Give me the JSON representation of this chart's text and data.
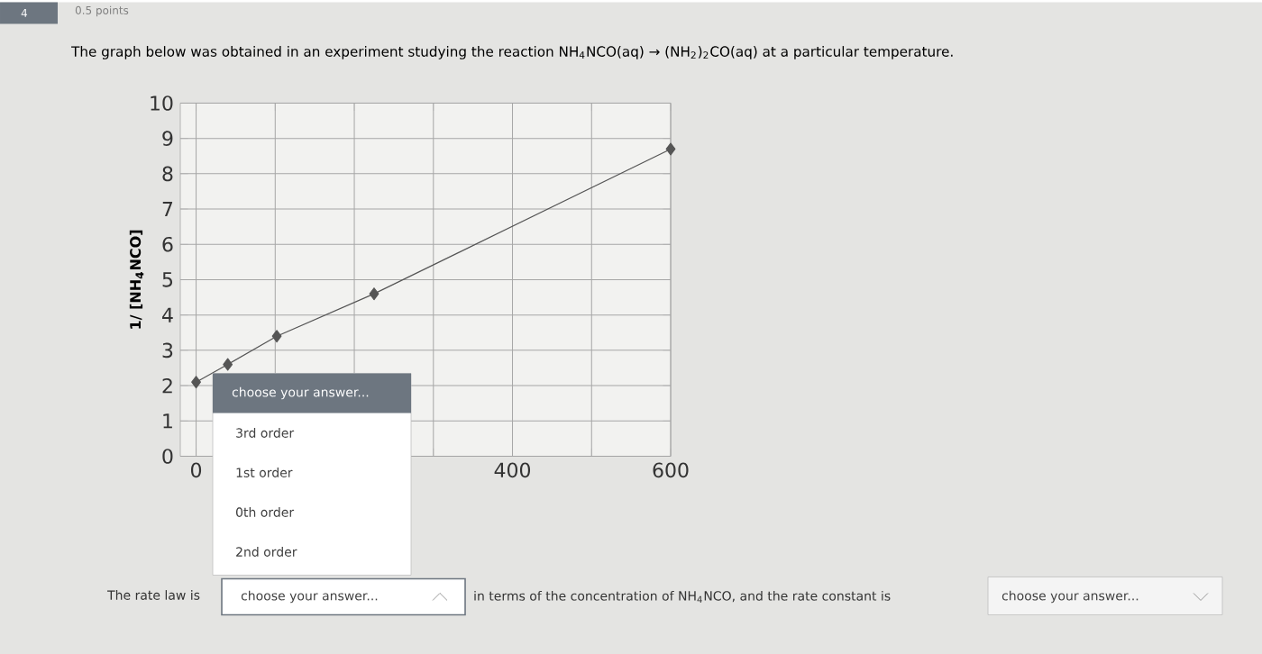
{
  "chart_data": {
    "type": "line",
    "title": "The graph below was obtained in an experiment studying the reaction NH$_{4}$NCO(aq) → (NH$_{2}$)$_{2}$CO(aq) at a particular temperature.",
    "ylabel": "1/ [NH$_{4}$NCO]",
    "x": [
      0,
      40,
      102,
      225,
      600
    ],
    "series": [
      {
        "color": "#555555",
        "values": [
          2.1,
          2.6,
          3.4,
          4.6,
          8.7
        ]
      }
    ],
    "xlim": [
      -20,
      600
    ],
    "xticks": [
      0,
      {
        "value": 100,
        "label": null
      },
      {
        "value": 200,
        "label": null
      },
      {
        "value": 300,
        "label": null
      },
      400,
      {
        "value": 500,
        "label": null
      },
      600
    ],
    "ylim": [
      0,
      10
    ],
    "yticks": [
      0,
      1,
      2,
      3,
      4,
      5,
      6,
      7,
      8,
      9,
      10
    ],
    "grid": true,
    "marker": "diamond",
    "line_style": "solid",
    "annotations": [
      "4",
      "0.5 points",
      "choose your answer...",
      "3rd order",
      "1st order",
      "0th order",
      "2nd order",
      "The rate law is",
      "choose your answer...",
      "in terms of the concentration of NH$_{4}$NCO, and the rate constant is",
      "choose your answer..."
    ]
  }
}
